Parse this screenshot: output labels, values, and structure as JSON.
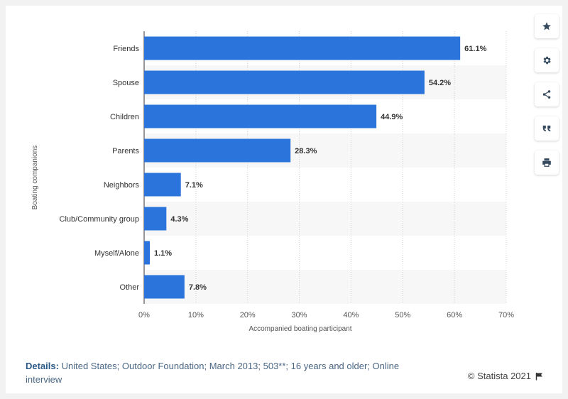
{
  "chart_data": {
    "type": "bar",
    "orientation": "horizontal",
    "categories": [
      "Friends",
      "Spouse",
      "Children",
      "Parents",
      "Neighbors",
      "Club/Community group",
      "Myself/Alone",
      "Other"
    ],
    "values": [
      61.1,
      54.2,
      44.9,
      28.3,
      7.1,
      4.3,
      1.1,
      7.8
    ],
    "value_labels": [
      "61.1%",
      "54.2%",
      "44.9%",
      "28.3%",
      "7.1%",
      "4.3%",
      "1.1%",
      "7.8%"
    ],
    "xlabel": "Accompanied boating participant",
    "ylabel": "Boating companions",
    "xlim": [
      0,
      70
    ],
    "ticks": [
      0,
      10,
      20,
      30,
      40,
      50,
      60,
      70
    ],
    "tick_labels": [
      "0%",
      "10%",
      "20%",
      "30%",
      "40%",
      "50%",
      "60%",
      "70%"
    ],
    "grid": true,
    "bar_color": "#2a74dc"
  },
  "toolbar": {
    "items": [
      {
        "name": "star-icon"
      },
      {
        "name": "gear-icon"
      },
      {
        "name": "share-icon"
      },
      {
        "name": "quote-icon"
      },
      {
        "name": "print-icon"
      }
    ]
  },
  "footer": {
    "details_label": "Details:",
    "details_text": "United States; Outdoor Foundation; March 2013; 503**; 16 years and older; Online interview",
    "copyright": "© Statista 2021"
  }
}
